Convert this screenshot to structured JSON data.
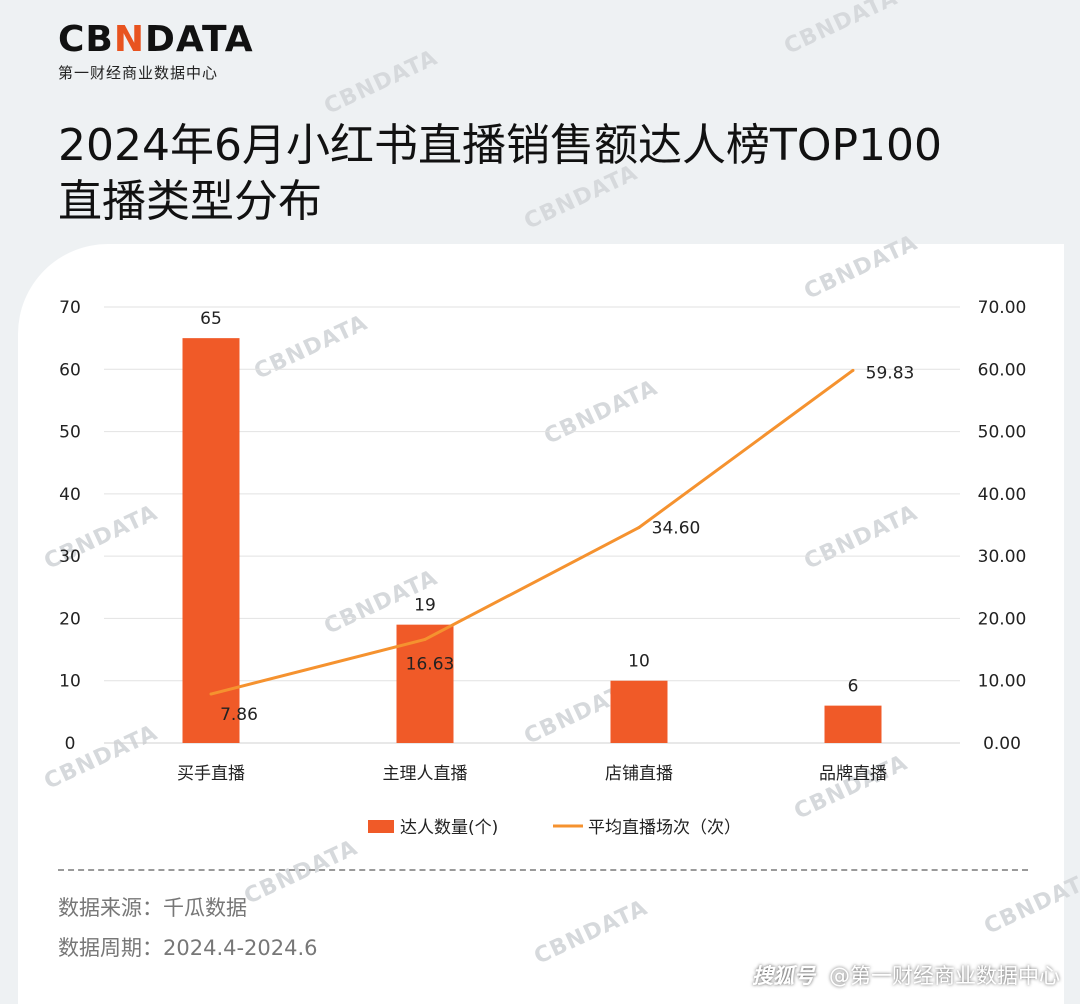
{
  "logo": {
    "main_prefix": "CB",
    "main_accent": "N",
    "main_suffix": "DATA",
    "subtitle": "第一财经商业数据中心"
  },
  "title_line1": "2024年6月小红书直播销售额达人榜TOP100",
  "title_line2": "直播类型分布",
  "watermark": "CBNDATA",
  "chart_data": {
    "type": "bar",
    "categories": [
      "买手直播",
      "主理人直播",
      "店铺直播",
      "品牌直播"
    ],
    "series": [
      {
        "name": "达人数量(个)",
        "type": "bar",
        "axis": "left",
        "values": [
          65,
          19,
          10,
          6
        ],
        "labels": [
          "65",
          "19",
          "10",
          "6"
        ],
        "color": "#f05a28"
      },
      {
        "name": "平均直播场次（次）",
        "type": "line",
        "axis": "right",
        "values": [
          7.86,
          16.63,
          34.6,
          59.83
        ],
        "labels": [
          "7.86",
          "16.63",
          "34.60",
          "59.83"
        ],
        "color": "#f5922f"
      }
    ],
    "y_left": {
      "ylim": [
        0,
        70
      ],
      "ticks": [
        "0",
        "10",
        "20",
        "30",
        "40",
        "50",
        "60",
        "70"
      ]
    },
    "y_right": {
      "ylim": [
        0,
        70
      ],
      "ticks": [
        "0.00",
        "10.00",
        "20.00",
        "30.00",
        "40.00",
        "50.00",
        "60.00",
        "70.00"
      ]
    },
    "grid": true,
    "legend": "bottom"
  },
  "footer": {
    "source": "数据来源：千瓜数据",
    "period": "数据周期：2024.4-2024.6"
  },
  "credit": {
    "brand": "搜狐号",
    "author": "@第一财经商业数据中心"
  }
}
